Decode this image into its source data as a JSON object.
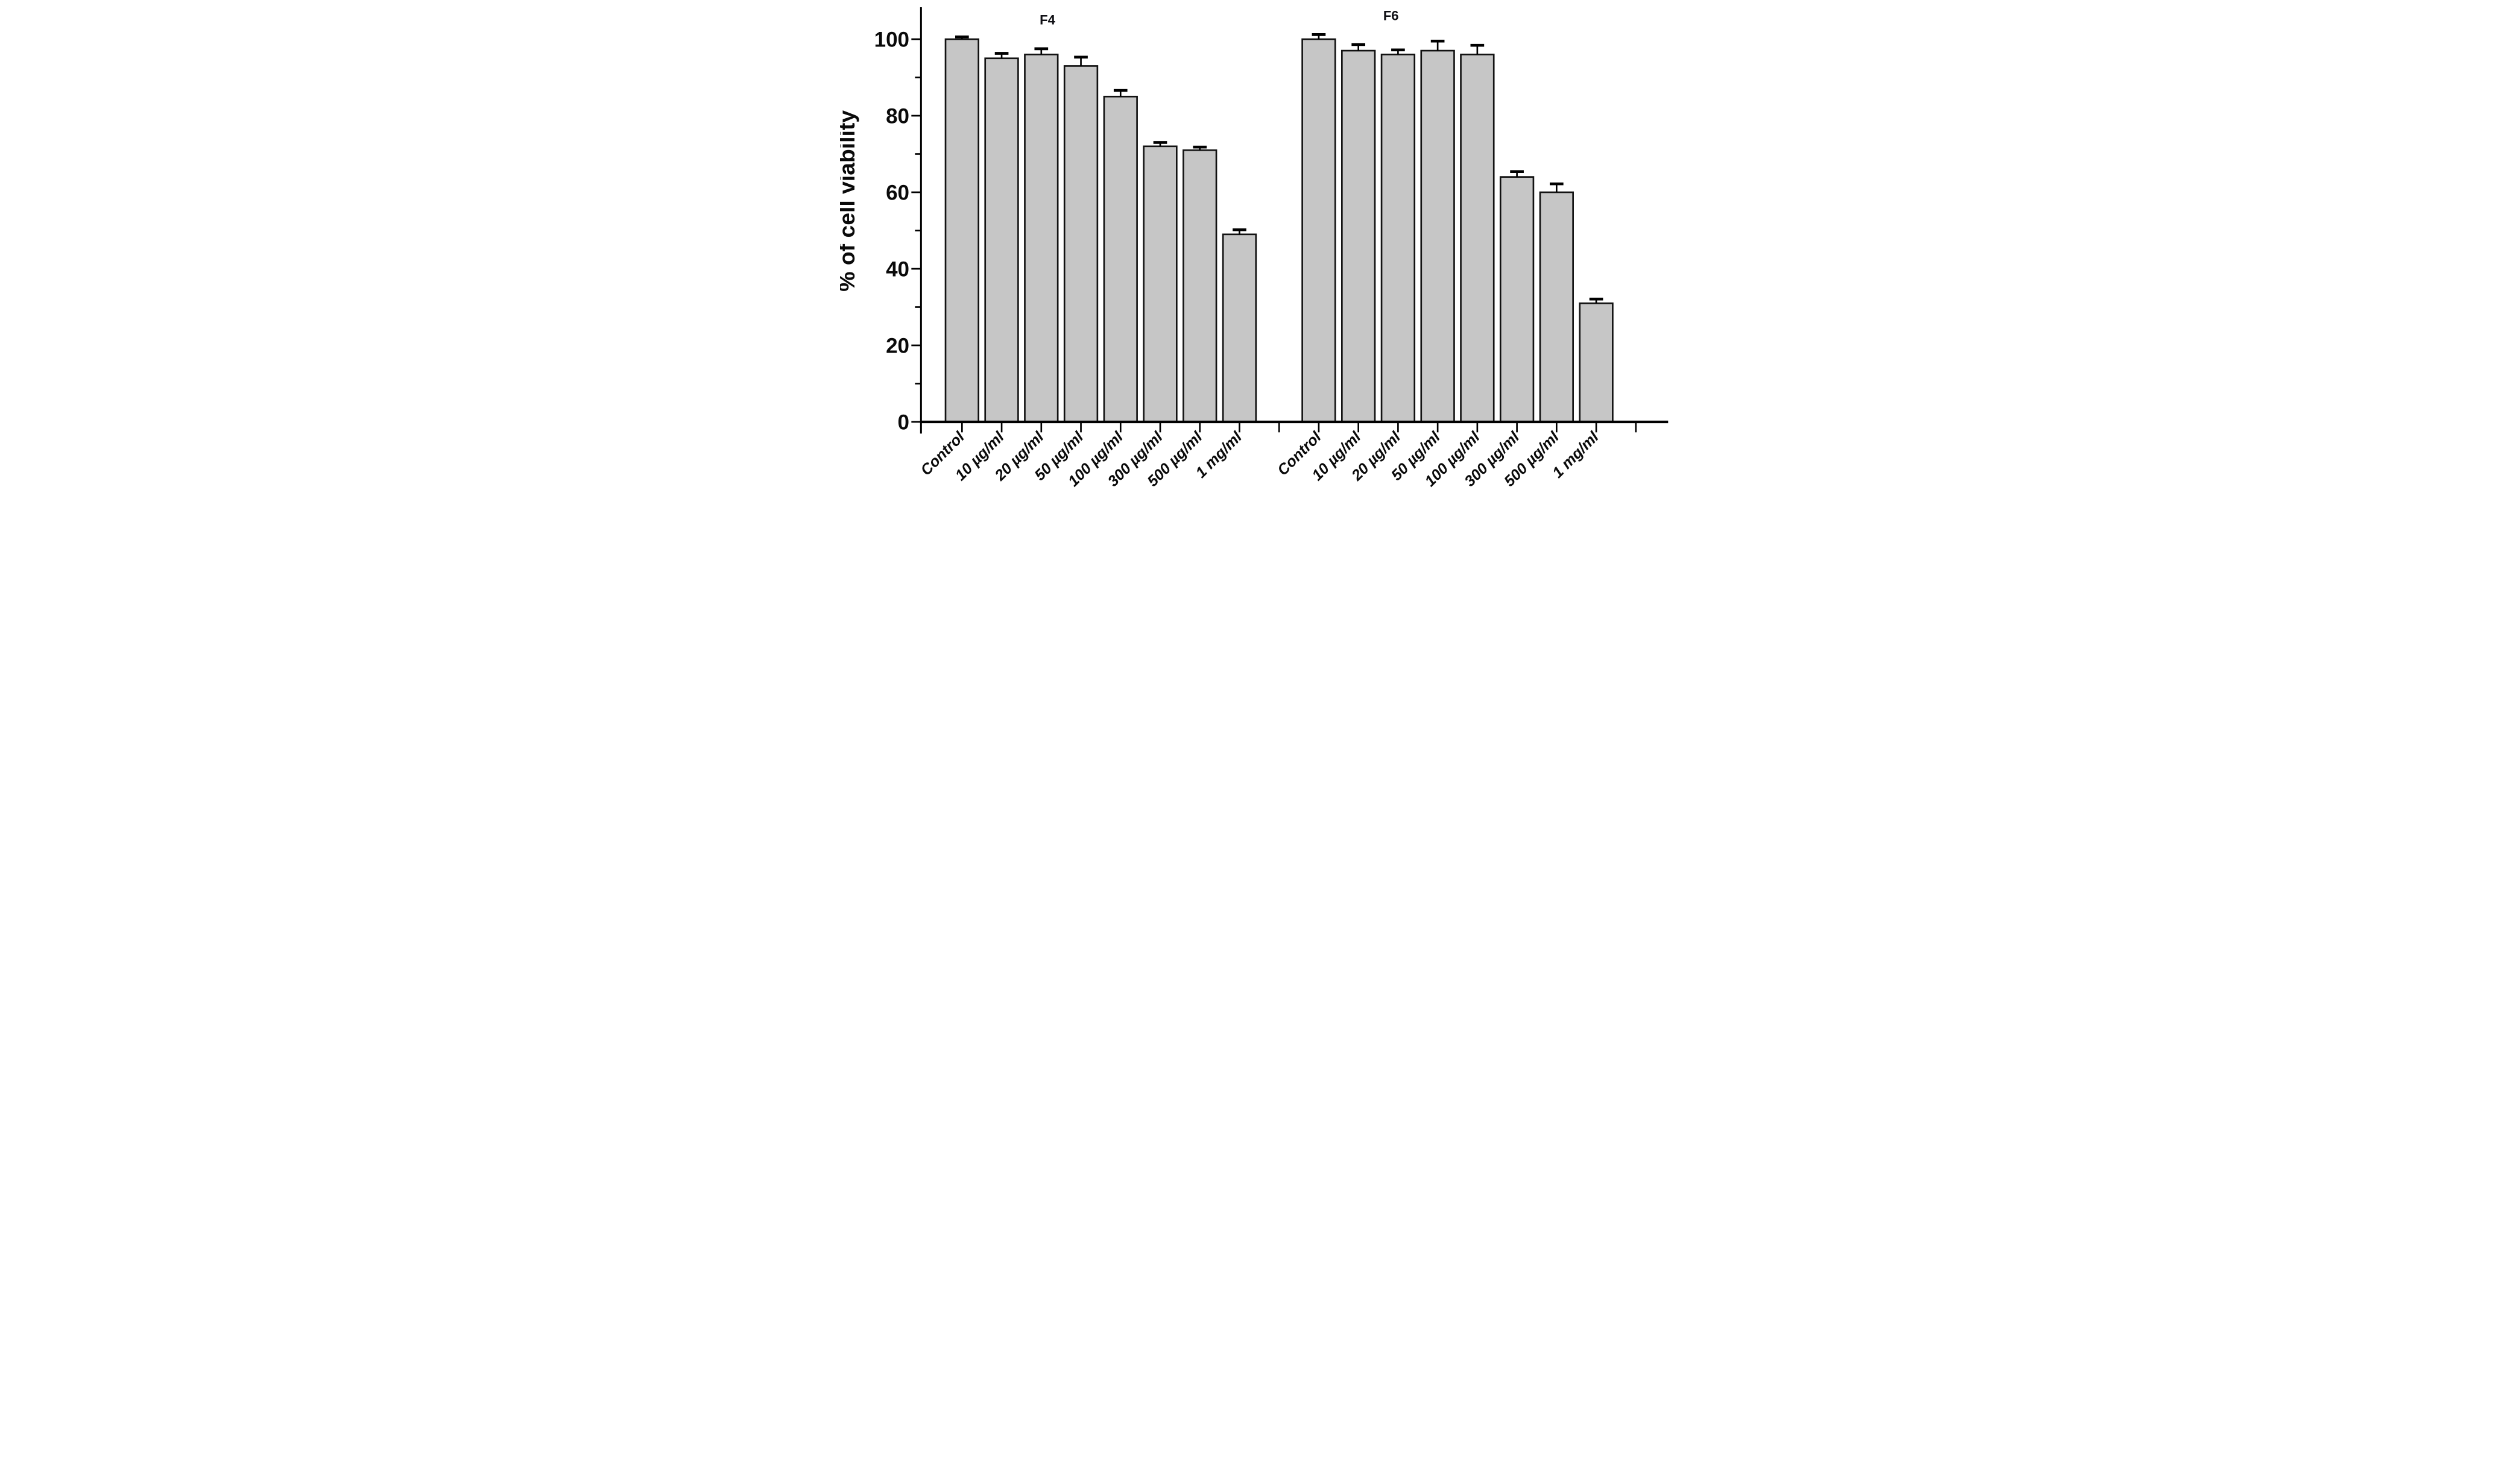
{
  "chart_data": {
    "type": "bar",
    "title": "",
    "ylabel": "% of cell viability",
    "xlabel": "",
    "ylim": [
      0,
      108
    ],
    "yticks": [
      0,
      20,
      40,
      60,
      80,
      100
    ],
    "minor_ytick_step": 10,
    "grid": false,
    "legend": null,
    "categories": [
      "Control",
      "10 µg/ml",
      "20 µg/ml",
      "50 µg/ml",
      "100 µg/ml",
      "300 µg/ml",
      "500 µg/ml",
      "1 mg/ml"
    ],
    "groups": [
      {
        "label": "F4",
        "values": [
          100,
          95,
          96,
          93,
          85,
          72,
          71,
          49
        ],
        "errors": [
          0.6,
          1.3,
          1.5,
          2.3,
          1.6,
          1.0,
          0.8,
          1.2
        ]
      },
      {
        "label": "F6",
        "values": [
          100,
          97,
          96,
          97,
          96,
          64,
          60,
          31
        ],
        "errors": [
          1.2,
          1.6,
          1.2,
          2.5,
          2.4,
          1.4,
          2.2,
          1.1
        ]
      }
    ],
    "colors": {
      "bar_fill": "#c6c6c6",
      "bar_stroke": "#121212",
      "axis": "#000000",
      "text": "#0a0a0a",
      "background": "#ffffff"
    }
  }
}
